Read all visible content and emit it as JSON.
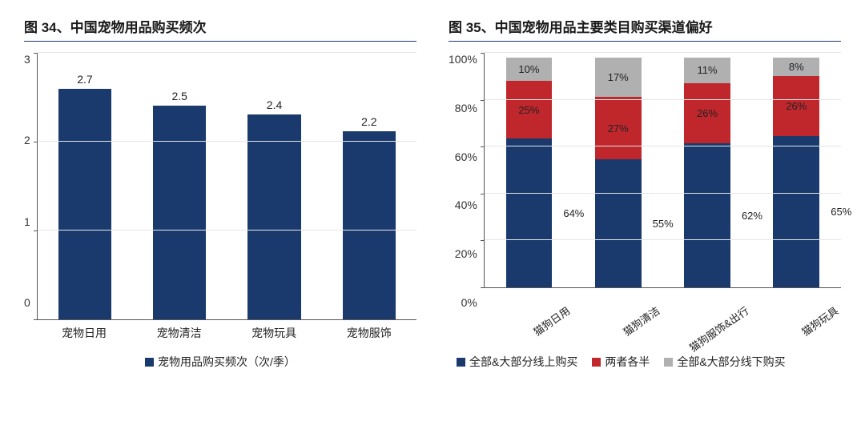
{
  "left_chart": {
    "title": "图 34、中国宠物用品购买频次",
    "type": "bar",
    "ylim": [
      0,
      3
    ],
    "yticks": [
      0,
      1,
      2,
      3
    ],
    "categories": [
      "宠物日用",
      "宠物清洁",
      "宠物玩具",
      "宠物服饰"
    ],
    "values": [
      2.7,
      2.5,
      2.4,
      2.2
    ],
    "bar_color": "#1a3a6e",
    "grid_color": "#e5e5e5",
    "axis_color": "#555555",
    "background_color": "#ffffff",
    "legend": [
      {
        "label": "宠物用品购买频次（次/季）",
        "color": "#1a3a6e"
      }
    ],
    "title_fontsize": 17,
    "label_fontsize": 14,
    "bar_width": 0.7
  },
  "right_chart": {
    "title": "图 35、中国宠物用品主要类目购买渠道偏好",
    "type": "stacked_bar_percent",
    "ylim": [
      0,
      100
    ],
    "yticks": [
      0,
      20,
      40,
      60,
      80,
      100
    ],
    "ytick_suffix": "%",
    "categories": [
      "猫狗日用",
      "猫狗清洁",
      "猫狗服饰&出行",
      "猫狗玩具"
    ],
    "series": [
      {
        "name": "全部&大部分线上购买",
        "color": "#1a3a6e",
        "values": [
          64,
          55,
          62,
          65
        ],
        "label_pos": "right"
      },
      {
        "name": "两者各半",
        "color": "#c0272d",
        "values": [
          25,
          27,
          26,
          26
        ],
        "label_pos": "inside"
      },
      {
        "name": "全部&大部分线下购买",
        "color": "#b0b0b0",
        "values": [
          10,
          17,
          11,
          8
        ],
        "label_pos": "inside"
      }
    ],
    "grid_color": "#e5e5e5",
    "axis_color": "#555555",
    "background_color": "#ffffff",
    "legend": [
      {
        "label": "全部&大部分线上购买",
        "color": "#1a3a6e"
      },
      {
        "label": "两者各半",
        "color": "#c0272d"
      },
      {
        "label": "全部&大部分线下购买",
        "color": "#b0b0b0"
      }
    ],
    "title_fontsize": 17,
    "label_fontsize": 13,
    "bar_width": 0.65
  }
}
